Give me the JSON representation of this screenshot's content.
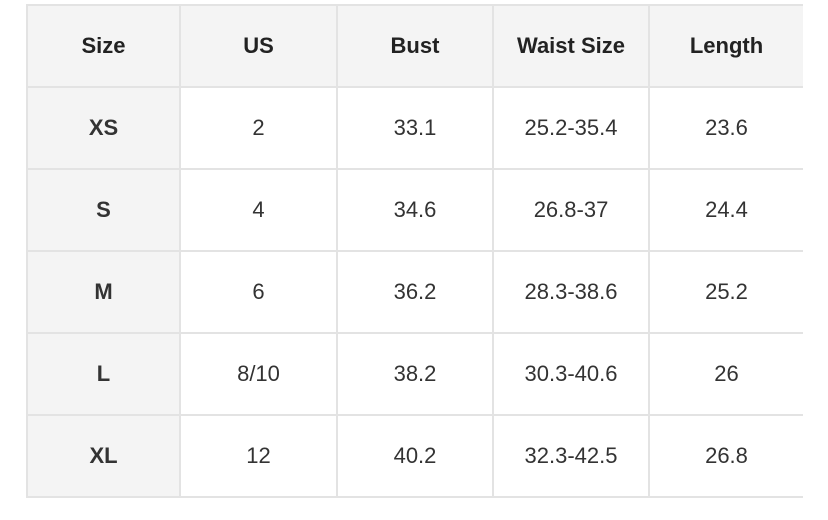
{
  "headers": [
    "Size",
    "US",
    "Bust",
    "Waist Size",
    "Length"
  ],
  "rows": [
    [
      "XS",
      "2",
      "33.1",
      "25.2-35.4",
      "23.6"
    ],
    [
      "S",
      "4",
      "34.6",
      "26.8-37",
      "24.4"
    ],
    [
      "M",
      "6",
      "36.2",
      "28.3-38.6",
      "25.2"
    ],
    [
      "L",
      "8/10",
      "38.2",
      "30.3-40.6",
      "26"
    ],
    [
      "XL",
      "12",
      "40.2",
      "32.3-42.5",
      "26.8"
    ]
  ]
}
